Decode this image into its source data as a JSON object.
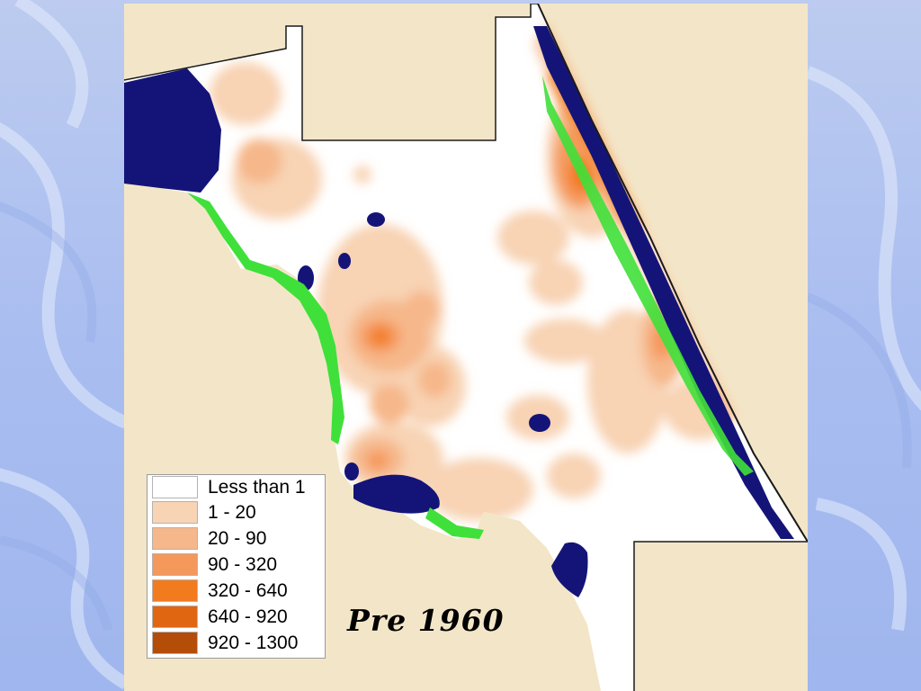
{
  "map": {
    "caption": "Pre 1960",
    "colors": {
      "background": "#f3e6c8",
      "land": "#ffffff",
      "water": "#141478",
      "wetland": "#3fe03a",
      "border": "#1a1a1a"
    },
    "legend": [
      {
        "label": "Less than 1",
        "color": "#ffffff"
      },
      {
        "label": "1 - 20",
        "color": "#f8d3b4"
      },
      {
        "label": "20 - 90",
        "color": "#f6b78a"
      },
      {
        "label": "90 - 320",
        "color": "#f5985b"
      },
      {
        "label": "320 - 640",
        "color": "#f27b1e"
      },
      {
        "label": "640 - 920",
        "color": "#e06612"
      },
      {
        "label": "920 - 1300",
        "color": "#b44d08"
      }
    ]
  },
  "slide": {
    "background_color": "#b1c3ef",
    "swirl_color": "#dfe6f8"
  }
}
